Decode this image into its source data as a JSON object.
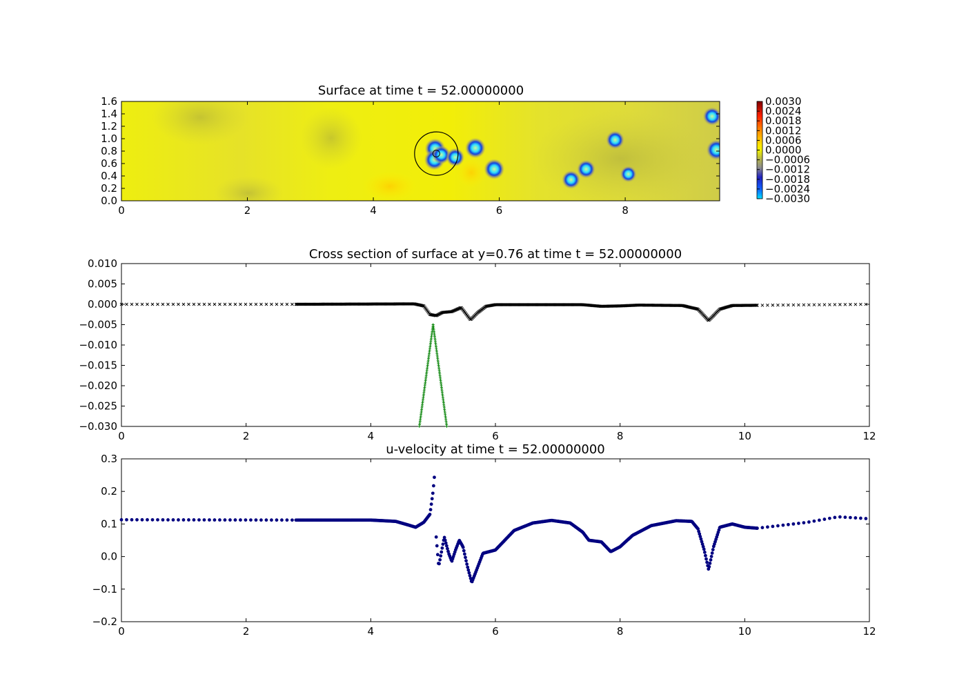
{
  "chart_data": [
    {
      "type": "heatmap",
      "title": "Surface at time t =    52.00000000",
      "xlim": [
        0,
        9.5
      ],
      "ylim": [
        0,
        1.6
      ],
      "yticks": [
        "0.0",
        "0.2",
        "0.4",
        "0.6",
        "0.8",
        "1.0",
        "1.2",
        "1.4",
        "1.6"
      ],
      "xticks": [
        "0",
        "2",
        "4",
        "6",
        "8"
      ],
      "colorbar": {
        "ticks": [
          "0.0030",
          "0.0024",
          "0.0018",
          "0.0012",
          "0.0006",
          "0.0000",
          "−0.0006",
          "−0.0012",
          "−0.0018",
          "−0.0024",
          "−0.0030"
        ],
        "range": [
          -0.003,
          0.003
        ]
      },
      "circle": {
        "x": 5.0,
        "y": 0.76,
        "r": 0.35
      },
      "spots": [
        {
          "x": 4.98,
          "y": 0.84,
          "v": -0.003
        },
        {
          "x": 4.97,
          "y": 0.66,
          "v": -0.003
        },
        {
          "x": 5.08,
          "y": 0.74,
          "v": -0.0025
        },
        {
          "x": 5.3,
          "y": 0.7,
          "v": -0.0025
        },
        {
          "x": 5.62,
          "y": 0.85,
          "v": -0.003
        },
        {
          "x": 5.92,
          "y": 0.51,
          "v": -0.003
        },
        {
          "x": 7.14,
          "y": 0.34,
          "v": -0.0025
        },
        {
          "x": 7.38,
          "y": 0.51,
          "v": -0.0025
        },
        {
          "x": 7.84,
          "y": 0.98,
          "v": -0.0025
        },
        {
          "x": 8.05,
          "y": 0.43,
          "v": -0.002
        },
        {
          "x": 9.38,
          "y": 1.36,
          "v": -0.0025
        },
        {
          "x": 9.45,
          "y": 0.82,
          "v": -0.003
        }
      ]
    },
    {
      "type": "scatter",
      "title": "Cross section of surface at y=0.76 at time t =    52.00000000",
      "xlim": [
        0,
        12
      ],
      "ylim": [
        -0.03,
        0.01
      ],
      "xticks": [
        "0",
        "2",
        "4",
        "6",
        "8",
        "10",
        "12"
      ],
      "yticks": [
        "0.010",
        "0.005",
        "0.000",
        "−0.005",
        "−0.010",
        "−0.015",
        "−0.020",
        "−0.025",
        "−0.030"
      ],
      "surface_profile": [
        [
          0,
          0.0
        ],
        [
          2.8,
          0.0
        ],
        [
          4.7,
          0.0001
        ],
        [
          4.85,
          -0.0004
        ],
        [
          4.95,
          -0.0025
        ],
        [
          5.05,
          -0.0028
        ],
        [
          5.15,
          -0.002
        ],
        [
          5.3,
          -0.0018
        ],
        [
          5.45,
          -0.0008
        ],
        [
          5.6,
          -0.0038
        ],
        [
          5.72,
          -0.002
        ],
        [
          5.85,
          -0.0005
        ],
        [
          6.0,
          -0.0001
        ],
        [
          7.4,
          -0.0001
        ],
        [
          7.7,
          -0.0005
        ],
        [
          8.0,
          -0.0004
        ],
        [
          8.3,
          -0.0002
        ],
        [
          9.0,
          -0.0003
        ],
        [
          9.25,
          -0.0012
        ],
        [
          9.42,
          -0.004
        ],
        [
          9.6,
          -0.0012
        ],
        [
          9.8,
          -0.0003
        ],
        [
          12,
          0.0
        ]
      ],
      "coarse_x_range_left": [
        0,
        2.8
      ],
      "coarse_x_range_right": [
        10.2,
        12
      ],
      "dense_x_range": [
        2.8,
        10.2
      ],
      "body_profile": {
        "center": 5.0,
        "apex": -0.005,
        "half_width_at_bottom": 0.22
      }
    },
    {
      "type": "scatter",
      "title": "u-velocity at time t =    52.00000000",
      "xlim": [
        0,
        12
      ],
      "ylim": [
        -0.2,
        0.3
      ],
      "xticks": [
        "0",
        "2",
        "4",
        "6",
        "8",
        "10",
        "12"
      ],
      "yticks": [
        "0.3",
        "0.2",
        "0.1",
        "0.0",
        "−0.1",
        "−0.2"
      ],
      "coarse_x_range_left": [
        0,
        2.8
      ],
      "coarse_x_range_right": [
        10.2,
        12
      ],
      "dense_x_range": [
        2.8,
        10.2
      ],
      "segments": [
        [
          [
            0,
            0.113
          ],
          [
            2.8,
            0.112
          ],
          [
            4.0,
            0.112
          ],
          [
            4.4,
            0.108
          ],
          [
            4.6,
            0.097
          ],
          [
            4.72,
            0.09
          ],
          [
            4.85,
            0.105
          ],
          [
            4.95,
            0.13
          ],
          [
            5.0,
            0.2
          ],
          [
            5.03,
            0.265
          ]
        ],
        [
          [
            5.05,
            0.06
          ],
          [
            5.09,
            -0.03
          ],
          [
            5.14,
            0.02
          ],
          [
            5.18,
            0.06
          ],
          [
            5.25,
            0.01
          ],
          [
            5.3,
            -0.015
          ],
          [
            5.36,
            0.02
          ],
          [
            5.42,
            0.05
          ],
          [
            5.48,
            0.03
          ],
          [
            5.55,
            -0.03
          ],
          [
            5.62,
            -0.08
          ],
          [
            5.7,
            -0.04
          ],
          [
            5.8,
            0.01
          ],
          [
            6.0,
            0.02
          ],
          [
            6.1,
            0.04
          ],
          [
            6.3,
            0.08
          ],
          [
            6.6,
            0.103
          ],
          [
            6.9,
            0.111
          ],
          [
            7.2,
            0.103
          ],
          [
            7.4,
            0.075
          ],
          [
            7.5,
            0.05
          ],
          [
            7.7,
            0.045
          ],
          [
            7.85,
            0.015
          ],
          [
            8.0,
            0.03
          ],
          [
            8.2,
            0.065
          ],
          [
            8.5,
            0.095
          ],
          [
            8.9,
            0.11
          ],
          [
            9.15,
            0.108
          ],
          [
            9.25,
            0.085
          ],
          [
            9.35,
            0.02
          ],
          [
            9.42,
            -0.04
          ],
          [
            9.5,
            0.03
          ],
          [
            9.6,
            0.09
          ],
          [
            9.8,
            0.1
          ],
          [
            10.0,
            0.09
          ],
          [
            10.2,
            0.087
          ],
          [
            11.0,
            0.105
          ],
          [
            11.5,
            0.122
          ],
          [
            12.0,
            0.116
          ]
        ]
      ]
    }
  ]
}
